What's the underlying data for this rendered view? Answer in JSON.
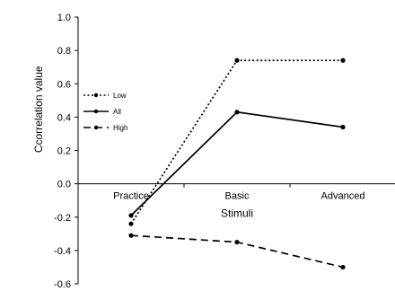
{
  "chart_data": {
    "type": "line",
    "categories": [
      "Practice",
      "Basic",
      "Advanced"
    ],
    "series": [
      {
        "name": "Low",
        "values": [
          -0.24,
          0.74,
          0.74
        ],
        "dash": "2,2.5"
      },
      {
        "name": "All",
        "values": [
          -0.19,
          0.43,
          0.34
        ],
        "dash": ""
      },
      {
        "name": "High",
        "values": [
          -0.31,
          -0.35,
          -0.5
        ],
        "dash": "8,5"
      }
    ],
    "xlabel": "Stimuli",
    "ylabel": "Ccorrelation value",
    "ylim": [
      -0.6,
      1.0
    ],
    "yticks": [
      "-0.6",
      "-0.4",
      "-0.2",
      "0.0",
      "0.2",
      "0.4",
      "0.6",
      "0.8",
      "1.0"
    ],
    "grid": false,
    "legend_position": "upper-left",
    "color": "#000000"
  }
}
